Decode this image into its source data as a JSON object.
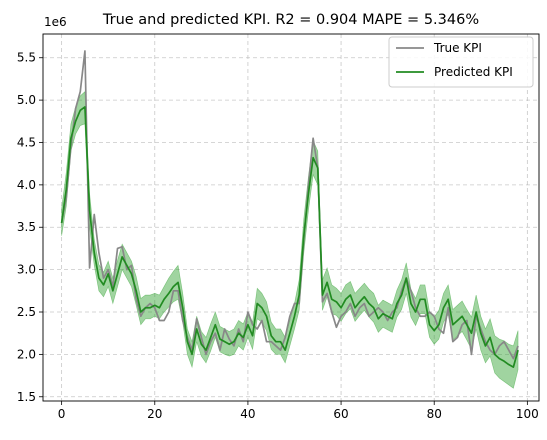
{
  "chart_data": {
    "type": "line",
    "title": "True and predicted KPI. R2 = 0.904 MAPE = 5.346%",
    "xlabel": "",
    "ylabel": "",
    "y_scale_label": "1e6",
    "xlim": [
      -4,
      102.5
    ],
    "ylim": [
      1.45,
      5.78
    ],
    "x_ticks": [
      0,
      20,
      40,
      60,
      80,
      100
    ],
    "x_tick_labels": [
      "0",
      "20",
      "40",
      "60",
      "80",
      "100"
    ],
    "y_ticks": [
      1.5,
      2.0,
      2.5,
      3.0,
      3.5,
      4.0,
      4.5,
      5.0,
      5.5
    ],
    "y_tick_labels": [
      "1.5",
      "2.0",
      "2.5",
      "3.0",
      "3.5",
      "4.0",
      "4.5",
      "5.0",
      "5.5"
    ],
    "grid": true,
    "legend_position": "top-right",
    "band_color": "#2ca02c",
    "x": [
      0,
      1,
      2,
      3,
      4,
      5,
      6,
      7,
      8,
      9,
      10,
      11,
      12,
      13,
      14,
      15,
      16,
      17,
      18,
      19,
      20,
      21,
      22,
      23,
      24,
      25,
      26,
      27,
      28,
      29,
      30,
      31,
      32,
      33,
      34,
      35,
      36,
      37,
      38,
      39,
      40,
      41,
      42,
      43,
      44,
      45,
      46,
      47,
      48,
      49,
      50,
      51,
      52,
      53,
      54,
      55,
      56,
      57,
      58,
      59,
      60,
      61,
      62,
      63,
      64,
      65,
      66,
      67,
      68,
      69,
      70,
      71,
      72,
      73,
      74,
      75,
      76,
      77,
      78,
      79,
      80,
      81,
      82,
      83,
      84,
      85,
      86,
      87,
      88,
      89,
      90,
      91,
      92,
      93,
      94,
      95,
      96,
      97,
      98
    ],
    "series": [
      {
        "name": "True KPI",
        "color": "#888888",
        "values": [
          3.55,
          3.85,
          4.45,
          4.9,
          5.1,
          5.58,
          3.02,
          3.65,
          3.2,
          2.9,
          3.0,
          2.8,
          3.25,
          3.27,
          3.0,
          3.05,
          2.65,
          2.45,
          2.55,
          2.6,
          2.55,
          2.4,
          2.4,
          2.5,
          2.75,
          2.75,
          2.4,
          2.2,
          2.05,
          2.42,
          2.2,
          2.0,
          2.15,
          2.25,
          2.05,
          2.3,
          2.18,
          2.1,
          2.3,
          2.15,
          2.5,
          2.35,
          2.3,
          2.4,
          2.15,
          2.15,
          2.1,
          2.05,
          2.2,
          2.45,
          2.6,
          2.6,
          3.35,
          4.0,
          4.55,
          4.2,
          2.62,
          2.72,
          2.5,
          2.32,
          2.45,
          2.5,
          2.6,
          2.45,
          2.55,
          2.6,
          2.45,
          2.5,
          2.55,
          2.5,
          2.4,
          2.5,
          2.55,
          2.75,
          2.9,
          2.75,
          2.55,
          2.45,
          2.45,
          2.5,
          2.45,
          2.3,
          2.25,
          2.55,
          2.15,
          2.2,
          2.35,
          2.4,
          2.0,
          2.45,
          2.3,
          2.15,
          2.05,
          2.0,
          2.1,
          2.15,
          2.05,
          1.95,
          2.1
        ]
      },
      {
        "name": "Predicted KPI",
        "color": "#228b22",
        "values": [
          3.55,
          3.95,
          4.55,
          4.75,
          4.88,
          4.92,
          3.7,
          3.2,
          2.9,
          2.82,
          2.95,
          2.75,
          2.95,
          3.15,
          3.05,
          2.95,
          2.75,
          2.5,
          2.55,
          2.55,
          2.58,
          2.55,
          2.65,
          2.72,
          2.8,
          2.85,
          2.55,
          2.15,
          2.0,
          2.3,
          2.12,
          2.05,
          2.2,
          2.35,
          2.18,
          2.15,
          2.12,
          2.15,
          2.25,
          2.2,
          2.35,
          2.22,
          2.6,
          2.55,
          2.45,
          2.22,
          2.15,
          2.15,
          2.05,
          2.25,
          2.45,
          2.7,
          3.4,
          3.9,
          4.32,
          4.2,
          2.7,
          2.85,
          2.65,
          2.62,
          2.55,
          2.65,
          2.7,
          2.55,
          2.62,
          2.68,
          2.6,
          2.55,
          2.42,
          2.48,
          2.45,
          2.42,
          2.6,
          2.7,
          2.9,
          2.6,
          2.5,
          2.65,
          2.65,
          2.35,
          2.28,
          2.35,
          2.55,
          2.65,
          2.35,
          2.4,
          2.45,
          2.35,
          2.25,
          2.5,
          2.25,
          2.1,
          2.2,
          2.0,
          1.95,
          1.92,
          1.88,
          1.85,
          2.05
        ]
      }
    ],
    "band_lower": [
      3.4,
      3.75,
      4.4,
      4.6,
      4.7,
      4.72,
      3.5,
      3.05,
      2.75,
      2.68,
      2.8,
      2.6,
      2.8,
      3.0,
      2.9,
      2.8,
      2.58,
      2.35,
      2.42,
      2.42,
      2.45,
      2.42,
      2.5,
      2.56,
      2.62,
      2.65,
      2.38,
      2.0,
      1.85,
      2.15,
      1.98,
      1.9,
      2.04,
      2.2,
      2.03,
      2.0,
      1.98,
      2.0,
      2.1,
      2.05,
      2.2,
      2.06,
      2.42,
      2.38,
      2.28,
      2.06,
      2.0,
      2.0,
      1.9,
      2.1,
      2.3,
      2.52,
      3.2,
      3.7,
      4.12,
      4.0,
      2.52,
      2.68,
      2.48,
      2.46,
      2.39,
      2.48,
      2.54,
      2.39,
      2.46,
      2.52,
      2.44,
      2.38,
      2.26,
      2.32,
      2.29,
      2.26,
      2.44,
      2.53,
      2.72,
      2.44,
      2.34,
      2.48,
      2.48,
      2.2,
      2.12,
      2.18,
      2.38,
      2.47,
      2.17,
      2.22,
      2.27,
      2.17,
      2.06,
      2.3,
      2.05,
      1.9,
      1.98,
      1.78,
      1.72,
      1.68,
      1.64,
      1.6,
      1.82
    ],
    "band_upper": [
      3.72,
      4.15,
      4.72,
      4.92,
      5.05,
      5.1,
      3.9,
      3.36,
      3.06,
      2.97,
      3.1,
      2.9,
      3.11,
      3.3,
      3.2,
      3.1,
      2.92,
      2.66,
      2.7,
      2.7,
      2.72,
      2.7,
      2.8,
      2.9,
      2.98,
      3.05,
      2.72,
      2.3,
      2.15,
      2.45,
      2.27,
      2.2,
      2.36,
      2.5,
      2.33,
      2.3,
      2.27,
      2.3,
      2.4,
      2.36,
      2.5,
      2.38,
      2.78,
      2.72,
      2.62,
      2.38,
      2.3,
      2.3,
      2.2,
      2.4,
      2.6,
      2.88,
      3.6,
      4.1,
      4.52,
      4.4,
      2.88,
      3.02,
      2.82,
      2.78,
      2.72,
      2.82,
      2.86,
      2.72,
      2.78,
      2.84,
      2.77,
      2.72,
      2.58,
      2.64,
      2.61,
      2.58,
      2.76,
      2.88,
      3.08,
      2.77,
      2.66,
      2.82,
      2.82,
      2.5,
      2.44,
      2.52,
      2.72,
      2.82,
      2.53,
      2.58,
      2.63,
      2.53,
      2.44,
      2.7,
      2.45,
      2.3,
      2.42,
      2.22,
      2.18,
      2.16,
      2.12,
      2.1,
      2.28
    ]
  }
}
